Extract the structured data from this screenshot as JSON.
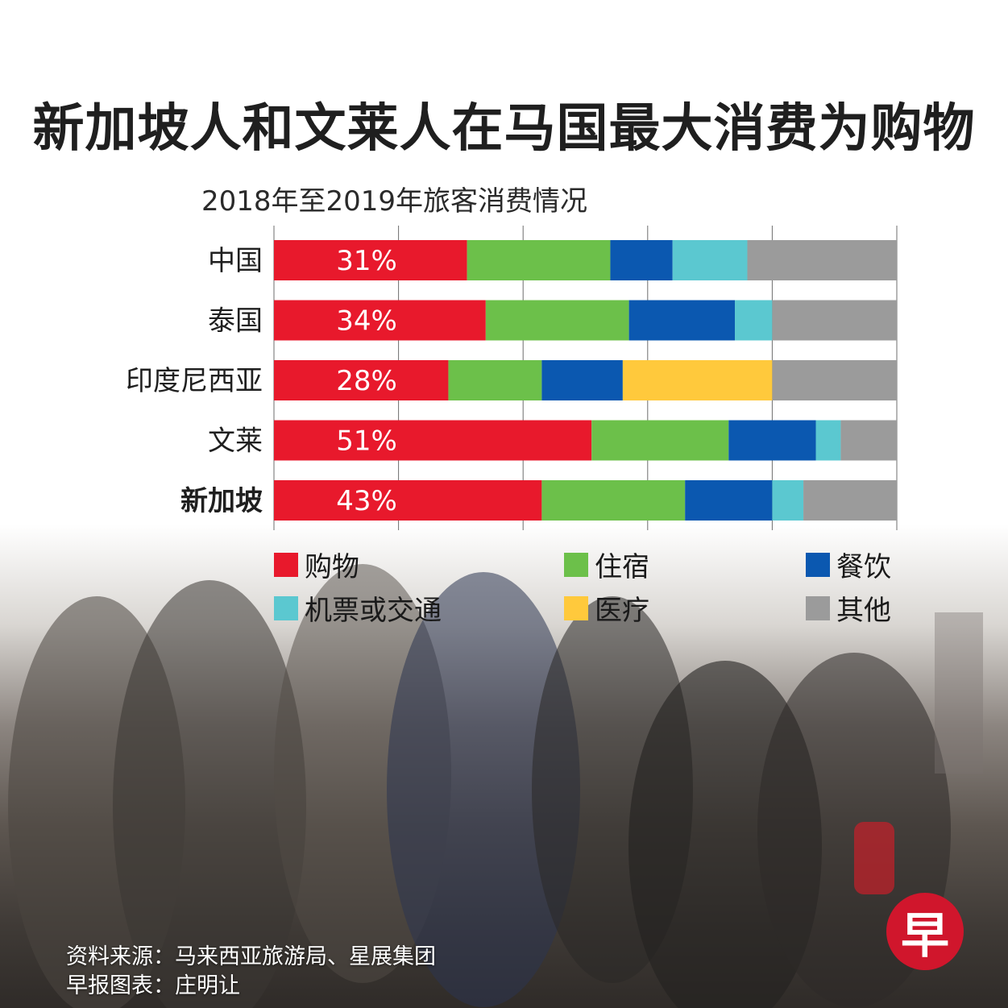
{
  "header": {
    "title": "新加坡人和文莱人在马国最大消费为购物",
    "subtitle": "2018年至2019年旅客消费情况"
  },
  "colors": {
    "shopping": "#e8192c",
    "accommodation": "#6cc04a",
    "dining": "#0b58b0",
    "transport": "#5bc8d0",
    "medical": "#ffc93c",
    "other": "#9b9b9b"
  },
  "chart_data": {
    "type": "bar",
    "orientation": "horizontal",
    "stacked": true,
    "categories": [
      "中国",
      "泰国",
      "印度尼西亚",
      "文莱",
      "新加坡"
    ],
    "series": [
      {
        "name": "购物",
        "values": [
          31,
          34,
          28,
          51,
          43
        ],
        "labels": [
          "31%",
          "34%",
          "28%",
          "51%",
          "43%"
        ]
      },
      {
        "name": "住宿",
        "values": [
          23,
          23,
          15,
          22,
          23
        ]
      },
      {
        "name": "餐饮",
        "values": [
          10,
          17,
          13,
          14,
          14
        ]
      },
      {
        "name": "机票或交通",
        "values": [
          12,
          6,
          0,
          4,
          5
        ]
      },
      {
        "name": "医疗",
        "values": [
          0,
          0,
          24,
          0,
          0
        ]
      },
      {
        "name": "其他",
        "values": [
          24,
          20,
          20,
          9,
          15
        ]
      }
    ],
    "xlim": [
      0,
      100
    ],
    "grid": true,
    "legend_position": "bottom"
  },
  "legend": {
    "items": [
      "购物",
      "住宿",
      "餐饮",
      "机票或交通",
      "医疗",
      "其他"
    ]
  },
  "footer": {
    "source": "资料来源：马来西亚旅游局、星展集团",
    "credit": "早报图表：庄明让"
  },
  "logo": {
    "text": "早"
  }
}
